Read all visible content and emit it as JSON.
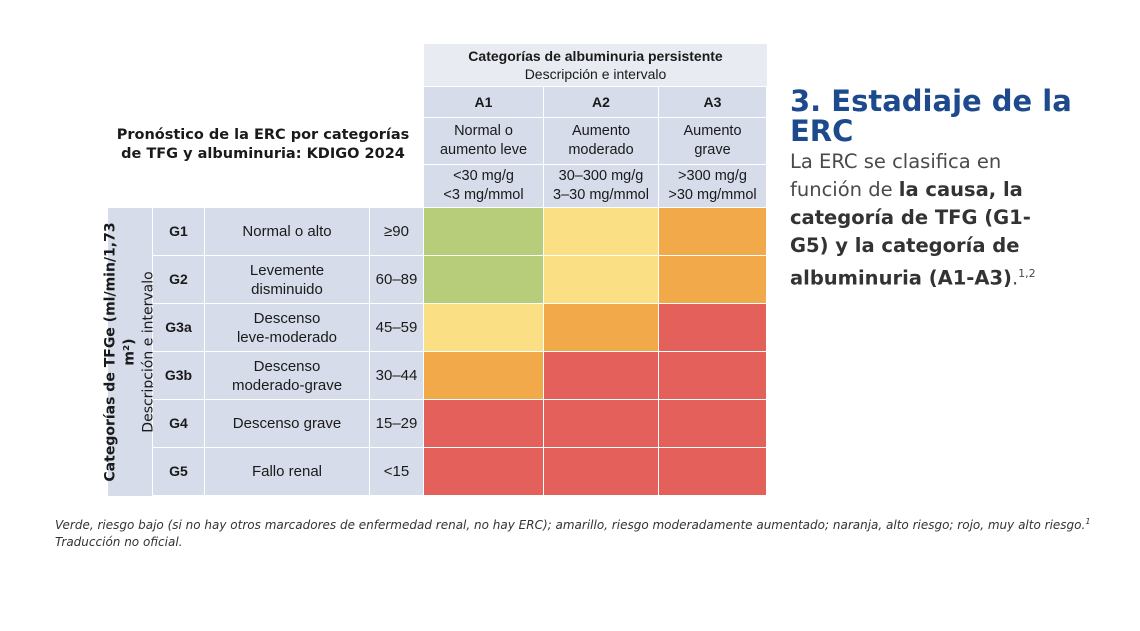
{
  "table": {
    "title_line1": "Pronóstico de la ERC por categorías",
    "title_line2": "de TFG y albuminuria: KDIGO 2024",
    "albuminuria_header": {
      "title": "Categorías de albuminuria persistente",
      "subtitle": "Descripción e intervalo",
      "columns": [
        {
          "code": "A1",
          "desc_line1": "Normal o",
          "desc_line2": "aumento leve",
          "range_line1": "<30 mg/g",
          "range_line2": "<3 mg/mmol"
        },
        {
          "code": "A2",
          "desc_line1": "Aumento",
          "desc_line2": "moderado",
          "range_line1": "30–300 mg/g",
          "range_line2": "3–30 mg/mmol"
        },
        {
          "code": "A3",
          "desc_line1": "Aumento",
          "desc_line2": "grave",
          "range_line1": ">300 mg/g",
          "range_line2": ">30 mg/mmol"
        }
      ]
    },
    "gfr_header": {
      "title": "Categorías de TFGe (ml/min/1,73 m²)",
      "subtitle": "Descripción e intervalo"
    },
    "rows": [
      {
        "code": "G1",
        "desc_line1": "Normal o alto",
        "desc_line2": "",
        "range": "≥90",
        "risk": [
          "green",
          "yellow",
          "orange"
        ]
      },
      {
        "code": "G2",
        "desc_line1": "Levemente",
        "desc_line2": "disminuido",
        "range": "60–89",
        "risk": [
          "green",
          "yellow",
          "orange"
        ]
      },
      {
        "code": "G3a",
        "desc_line1": "Descenso",
        "desc_line2": "leve-moderado",
        "range": "45–59",
        "risk": [
          "yellow",
          "orange",
          "red"
        ]
      },
      {
        "code": "G3b",
        "desc_line1": "Descenso",
        "desc_line2": "moderado-grave",
        "range": "30–44",
        "risk": [
          "orange",
          "red",
          "red"
        ]
      },
      {
        "code": "G4",
        "desc_line1": "Descenso grave",
        "desc_line2": "",
        "range": "15–29",
        "risk": [
          "red",
          "red",
          "red"
        ]
      },
      {
        "code": "G5",
        "desc_line1": "Fallo renal",
        "desc_line2": "",
        "range": "<15",
        "risk": [
          "red",
          "red",
          "red"
        ]
      }
    ],
    "risk_colors": {
      "green": "#b8cd79",
      "yellow": "#fbdf84",
      "orange": "#f1a94a",
      "red": "#e4605a"
    }
  },
  "side": {
    "heading": "3. Estadiaje de la ERC",
    "text_a": "La ERC se clasifica en función de ",
    "bold_1": "la causa, la categoría de TFG (G1-G5) y la categoría de albuminuria (A1-A3)",
    "text_b": ".",
    "sup": "1,2"
  },
  "footnote": {
    "line1": "Verde, riesgo bajo (si no hay otros marcadores de enfermedad renal, no hay ERC); amarillo, riesgo moderadamente aumentado; naranja, alto riesgo; rojo, muy alto riesgo.",
    "line1_sup": "1",
    "line2": "Traducción no oficial."
  }
}
